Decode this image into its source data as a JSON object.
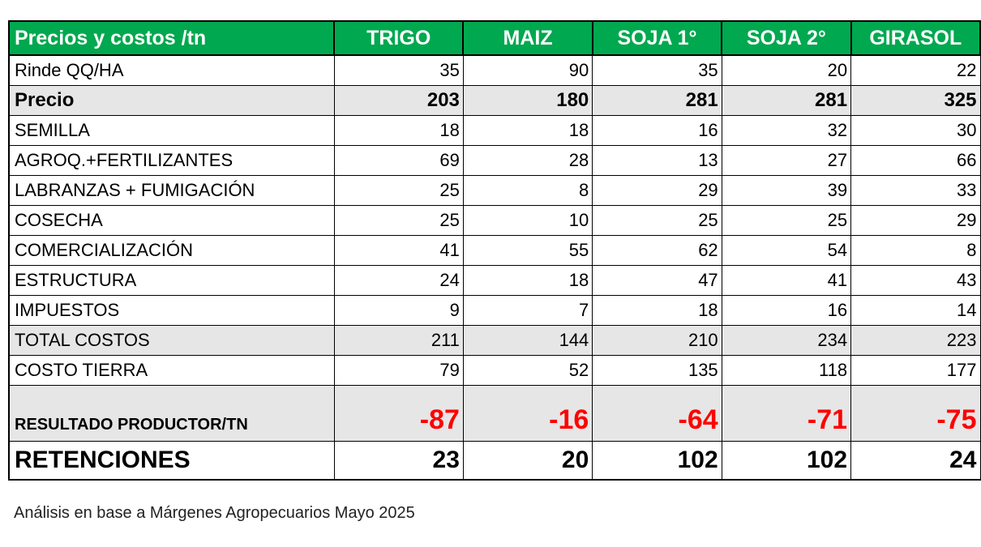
{
  "table": {
    "header": [
      "Precios y costos /tn",
      "TRIGO",
      "MAIZ",
      "SOJA 1°",
      "SOJA 2°",
      "GIRASOL"
    ],
    "rows": [
      {
        "label": "Rinde QQ/HA",
        "values": [
          "35",
          "90",
          "35",
          "20",
          "22"
        ],
        "style": "normal"
      },
      {
        "label": "Precio",
        "values": [
          "203",
          "180",
          "281",
          "281",
          "325"
        ],
        "style": "bold-shaded"
      },
      {
        "label": "SEMILLA",
        "values": [
          "18",
          "18",
          "16",
          "32",
          "30"
        ],
        "style": "normal"
      },
      {
        "label": "AGROQ.+FERTILIZANTES",
        "values": [
          "69",
          "28",
          "13",
          "27",
          "66"
        ],
        "style": "normal"
      },
      {
        "label": "LABRANZAS + FUMIGACIÓN",
        "values": [
          "25",
          "8",
          "29",
          "39",
          "33"
        ],
        "style": "normal"
      },
      {
        "label": "COSECHA",
        "values": [
          "25",
          "10",
          "25",
          "25",
          "29"
        ],
        "style": "normal"
      },
      {
        "label": "COMERCIALIZACIÓN",
        "values": [
          "41",
          "55",
          "62",
          "54",
          "8"
        ],
        "style": "normal"
      },
      {
        "label": "ESTRUCTURA",
        "values": [
          "24",
          "18",
          "47",
          "41",
          "43"
        ],
        "style": "normal"
      },
      {
        "label": "IMPUESTOS",
        "values": [
          "9",
          "7",
          "18",
          "16",
          "14"
        ],
        "style": "normal"
      },
      {
        "label": "TOTAL COSTOS",
        "values": [
          "211",
          "144",
          "210",
          "234",
          "223"
        ],
        "style": "shaded"
      },
      {
        "label": "COSTO  TIERRA",
        "values": [
          "79",
          "52",
          "135",
          "118",
          "177"
        ],
        "style": "normal"
      },
      {
        "label": "RESULTADO PRODUCTOR/TN",
        "values": [
          "-87",
          "-16",
          "-64",
          "-71",
          "-75"
        ],
        "style": "result-shaded"
      },
      {
        "label": "RETENCIONES",
        "values": [
          "23",
          "20",
          "102",
          "102",
          "24"
        ],
        "style": "large-bold"
      }
    ]
  },
  "note": "Análisis en base a Márgenes Agropecuarios Mayo 2025",
  "colors": {
    "header_bg": "#00a84f",
    "header_text": "#ffffff",
    "negative": "#ff0000",
    "shade": "#e6e6e6"
  }
}
